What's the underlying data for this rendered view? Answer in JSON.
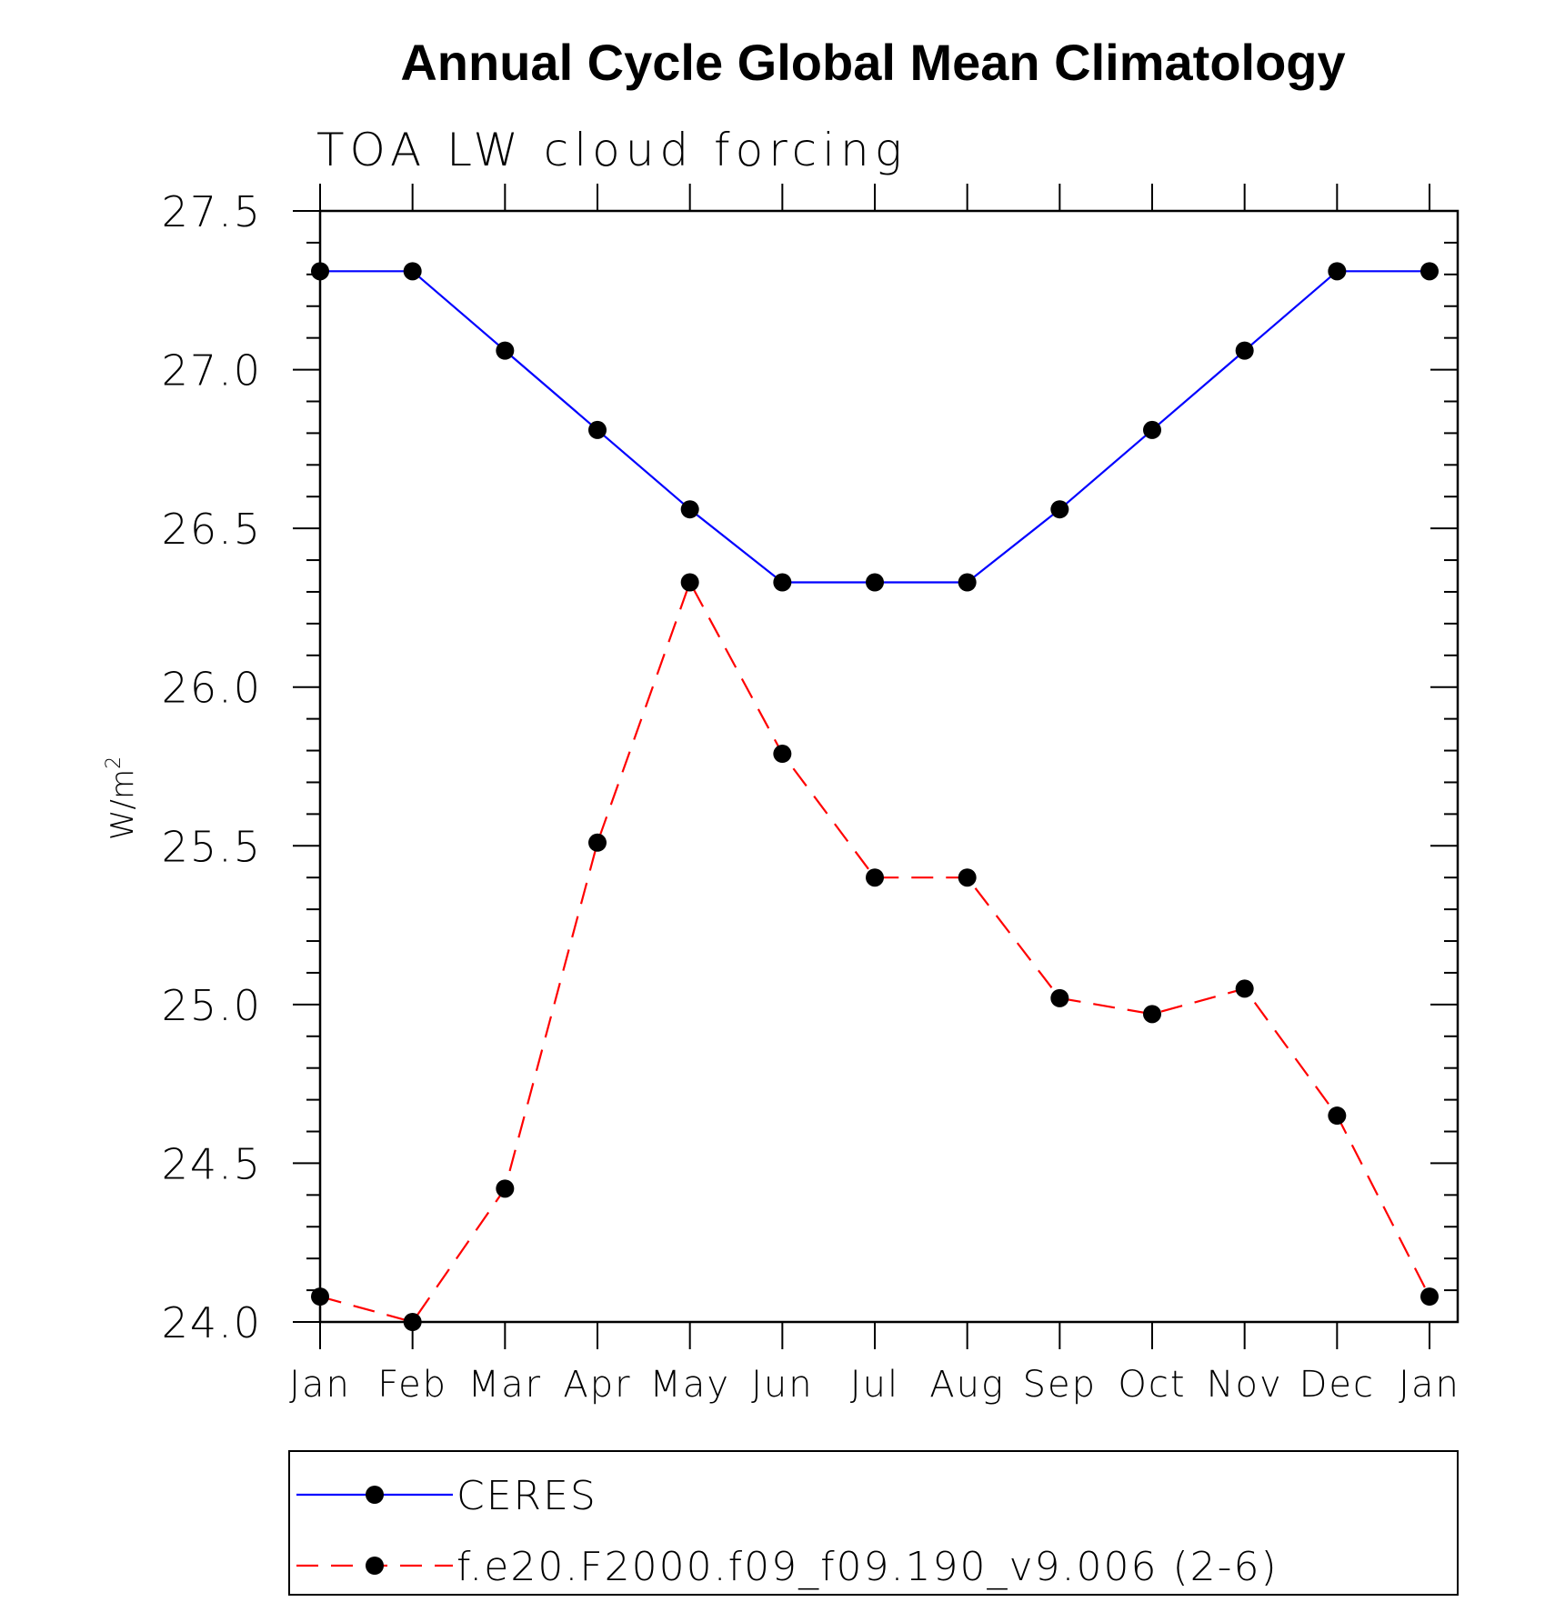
{
  "chart_data": {
    "type": "line",
    "title": "Annual Cycle Global Mean Climatology",
    "subtitle": "TOA LW cloud forcing",
    "ylabel": "W/m",
    "ylabel_superscript": "2",
    "xlabel": "",
    "categories": [
      "Jan",
      "Feb",
      "Mar",
      "Apr",
      "May",
      "Jun",
      "Jul",
      "Aug",
      "Sep",
      "Oct",
      "Nov",
      "Dec",
      "Jan"
    ],
    "ylim": [
      24.0,
      27.5
    ],
    "yticks": [
      "24.0",
      "24.5",
      "25.0",
      "25.5",
      "26.0",
      "26.5",
      "27.0",
      "27.5"
    ],
    "grid": false,
    "legend_position": "bottom",
    "series": [
      {
        "name": "CERES",
        "color": "#0000ff",
        "line_style": "solid",
        "marker": "filled-circle",
        "values": [
          27.31,
          27.31,
          27.06,
          26.81,
          26.56,
          26.33,
          26.33,
          26.33,
          26.56,
          26.81,
          27.06,
          27.31,
          27.31
        ]
      },
      {
        "name": "f.e20.F2000.f09_f09.190_v9.006 (2-6)",
        "color": "#ff0000",
        "line_style": "dashed",
        "marker": "filled-circle",
        "values": [
          24.08,
          24.0,
          24.42,
          25.51,
          26.33,
          25.79,
          25.4,
          25.4,
          25.02,
          24.97,
          25.05,
          24.65,
          24.08
        ]
      }
    ]
  }
}
